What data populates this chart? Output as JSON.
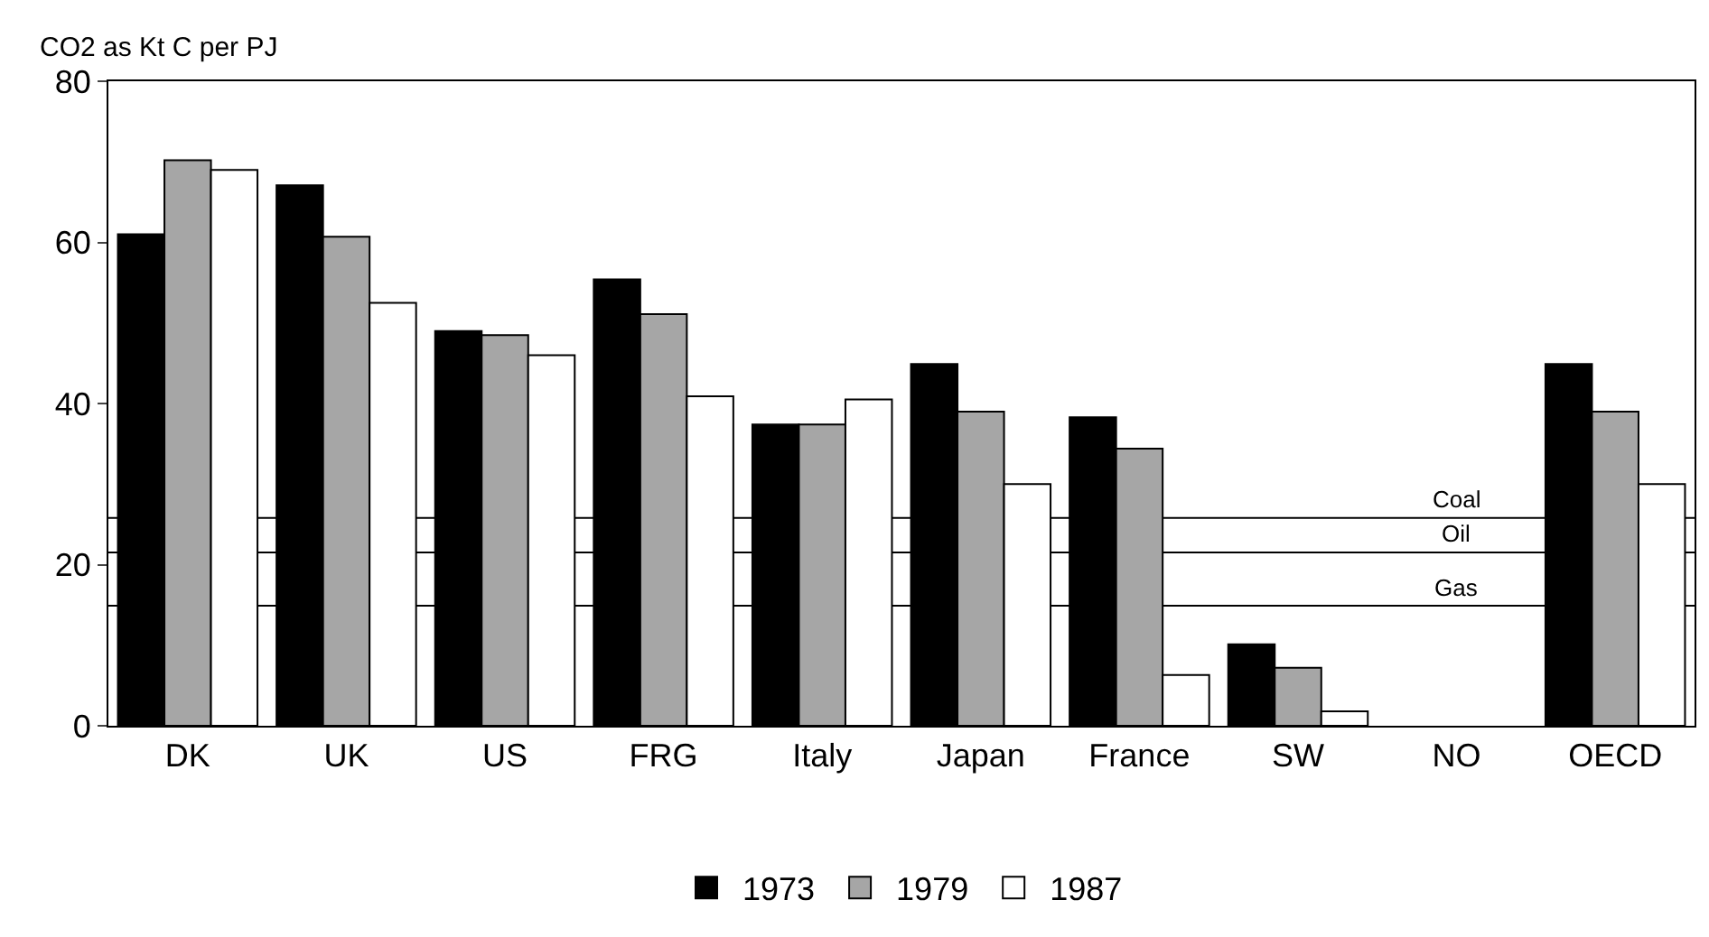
{
  "chart_data": {
    "type": "bar",
    "ylabel": "CO2 as Kt C per PJ",
    "categories": [
      "DK",
      "UK",
      "US",
      "FRG",
      "Italy",
      "Japan",
      "France",
      "SW",
      "NO",
      "OECD"
    ],
    "series": [
      {
        "name": "1973",
        "color": "#000000",
        "values": [
          61.0,
          67.1,
          49.0,
          55.4,
          37.4,
          44.9,
          38.3,
          10.1,
          null,
          44.9
        ]
      },
      {
        "name": "1979",
        "color": "#a6a6a6",
        "values": [
          70.2,
          60.7,
          48.5,
          51.1,
          37.4,
          39.0,
          34.4,
          7.2,
          null,
          39.0
        ]
      },
      {
        "name": "1987",
        "color": "#ffffff",
        "values": [
          69.0,
          52.5,
          46.0,
          40.9,
          40.5,
          30.0,
          6.3,
          1.8,
          null,
          30.0
        ]
      }
    ],
    "ref_lines": [
      {
        "axis": "y",
        "value": 25.8,
        "label": "Coal"
      },
      {
        "axis": "y",
        "value": 21.5,
        "label": "Oil"
      },
      {
        "axis": "y",
        "value": 14.9,
        "label": "Gas"
      }
    ],
    "ylim": [
      0,
      80
    ],
    "yticks": [
      0,
      20,
      40,
      60,
      80
    ],
    "grid": false,
    "legend": "bottom"
  }
}
